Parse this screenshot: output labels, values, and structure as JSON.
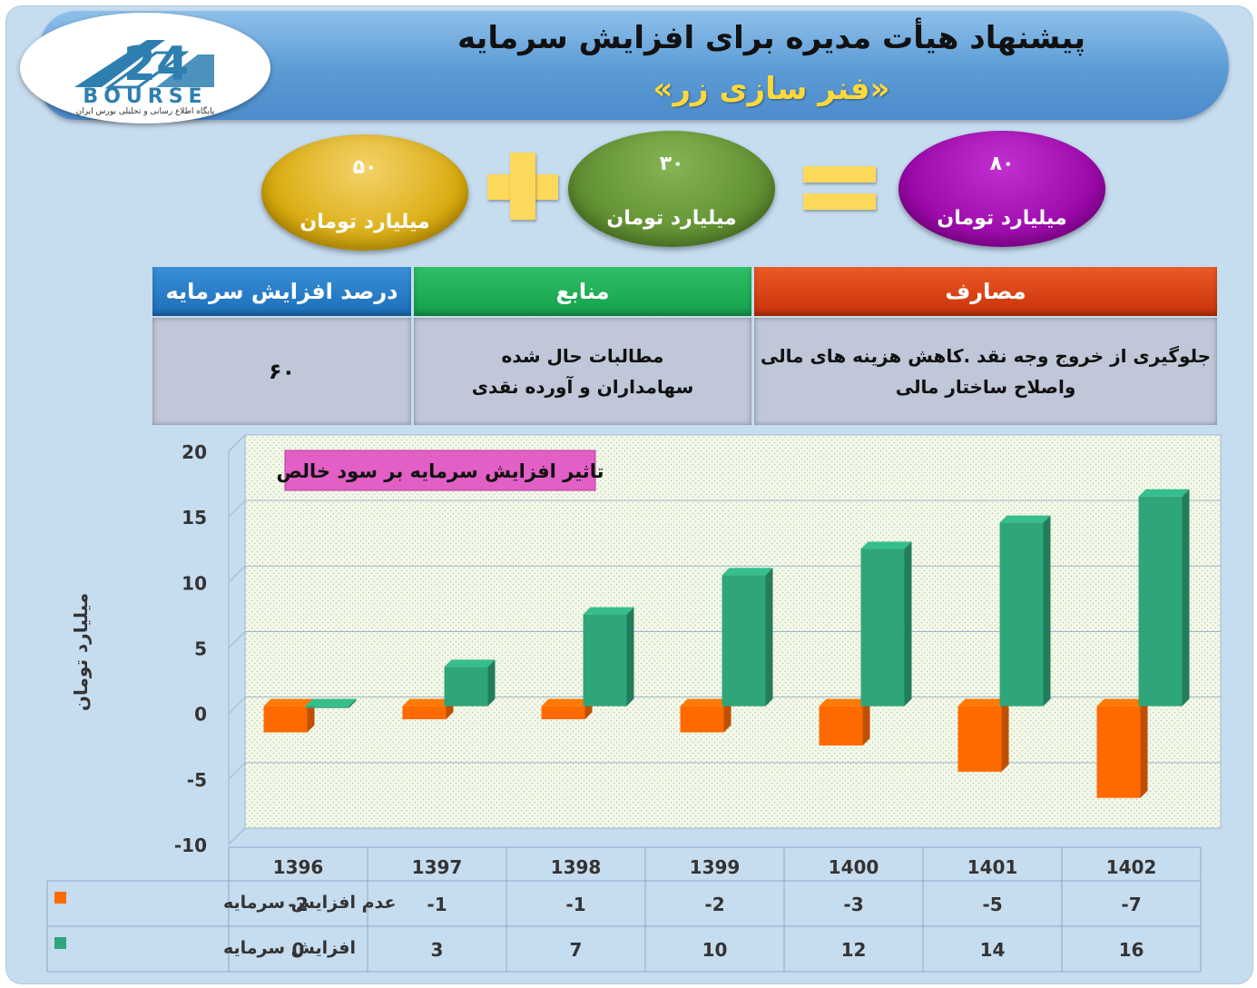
{
  "header": {
    "title": "پیشنهاد هیأت مدیره برای افزایش سرمایه",
    "subtitle": "«فنر سازی زر»"
  },
  "logo": {
    "number": "24",
    "name": "BOURSE",
    "tagline": "پایگاه اطلاع رسانی و تحلیلی بورس ایران"
  },
  "equation": {
    "current": {
      "value": "۵۰",
      "unit": "میلیارد تومان",
      "color": "#e0b010"
    },
    "increase": {
      "value": "۳۰",
      "unit": "میلیارد تومان",
      "color": "#6a9a3a"
    },
    "result": {
      "value": "۸۰",
      "unit": "میلیارد تومان",
      "color": "#9a0aa8"
    },
    "operators": {
      "plus": "+",
      "equals": "="
    }
  },
  "info_table": {
    "headers": {
      "percent": "درصد افزایش سرمایه",
      "sources": "منابع",
      "uses": "مصارف"
    },
    "values": {
      "percent": "۶۰",
      "sources": "مطالبات حال شده سهامداران و آورده نقدی",
      "uses": "جلوگیری از خروج وجه نقد .کاهش هزینه های مالی واصلاح ساختار مالی"
    },
    "header_colors": {
      "percent": "#1c6fb8",
      "sources": "#14a04a",
      "uses": "#d23a10"
    }
  },
  "chart_data": {
    "type": "bar",
    "title": "تاثیر افزایش سرمایه بر سود خالص",
    "ylabel": "میلیارد تومان",
    "xlabel": "",
    "ylim": [
      -10,
      20
    ],
    "yticks": [
      20,
      15,
      10,
      5,
      0,
      -5,
      -10
    ],
    "categories": [
      "1396",
      "1397",
      "1398",
      "1399",
      "1400",
      "1401",
      "1402"
    ],
    "series": [
      {
        "name": "عدم افزایش سرمایه",
        "color": "#ff6a00",
        "values": [
          -2,
          -1,
          -1,
          -2,
          -3,
          -5,
          -7
        ]
      },
      {
        "name": "افزایش سرمایه",
        "color": "#2fa57a",
        "values": [
          0,
          3,
          7,
          10,
          12,
          14,
          16
        ]
      }
    ],
    "grid": true,
    "legend": "data-table"
  }
}
